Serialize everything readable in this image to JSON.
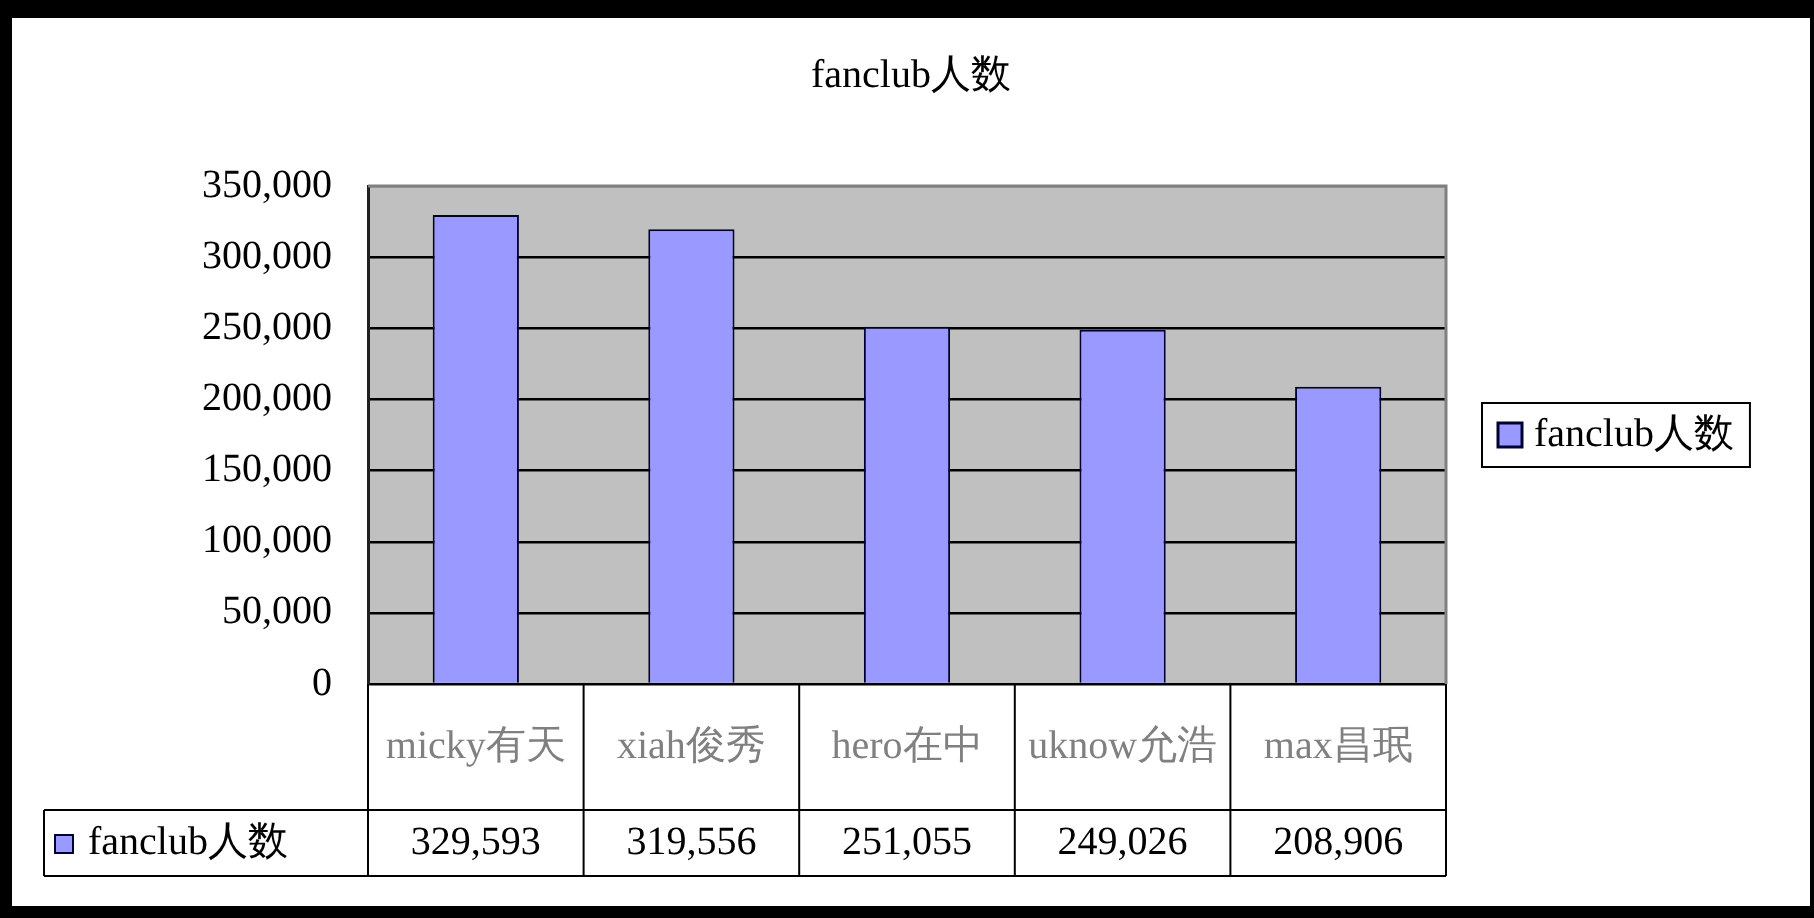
{
  "chart_data": {
    "type": "bar",
    "title": "fanclub人数",
    "categories": [
      "micky有天",
      "xiah俊秀",
      "hero在中",
      "uknow允浩",
      "max昌珉"
    ],
    "series": [
      {
        "name": "fanclub人数",
        "color": "#9999ff",
        "values": [
          329593,
          319556,
          251055,
          249026,
          208906
        ],
        "value_labels": [
          "329,593",
          "319,556",
          "251,055",
          "249,026",
          "208,906"
        ]
      }
    ],
    "ylim": [
      0,
      350000
    ],
    "yticks": [
      0,
      {
        "value": 50000,
        "label": "50,000"
      },
      {
        "value": 100000,
        "label": "100,000"
      },
      {
        "value": 150000,
        "label": "150,000"
      },
      {
        "value": 200000,
        "label": "200,000"
      },
      {
        "value": 250000,
        "label": "250,000"
      },
      {
        "value": 300000,
        "label": "300,000"
      },
      {
        "value": 350000,
        "label": "350,000"
      }
    ],
    "grid": "y",
    "legend": "right"
  }
}
